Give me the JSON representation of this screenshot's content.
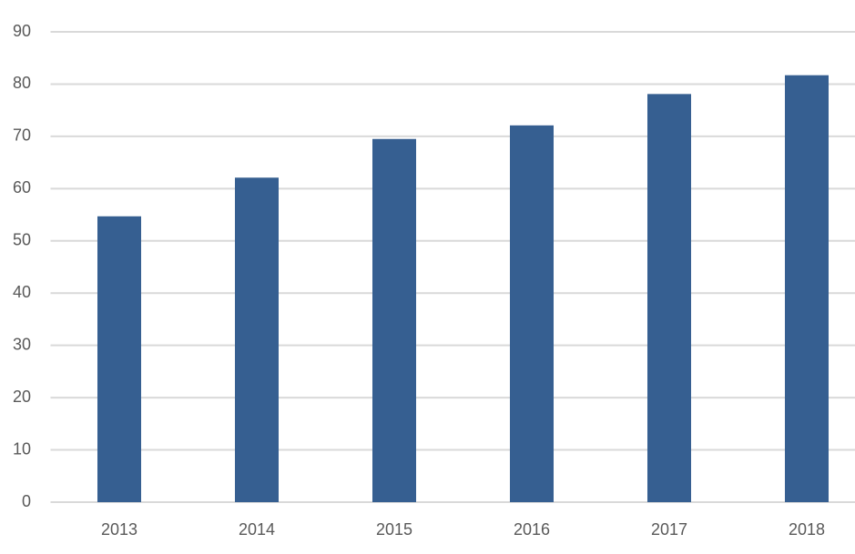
{
  "chart_data": {
    "type": "bar",
    "categories": [
      "2013",
      "2014",
      "2015",
      "2016",
      "2017",
      "2018"
    ],
    "values": [
      54.7,
      62.1,
      69.5,
      72.1,
      78.1,
      81.7
    ],
    "color": "#365f91",
    "ylim": [
      0,
      90
    ],
    "yticks": [
      0,
      10,
      20,
      30,
      40,
      50,
      60,
      70,
      80,
      90
    ],
    "grid": true
  }
}
